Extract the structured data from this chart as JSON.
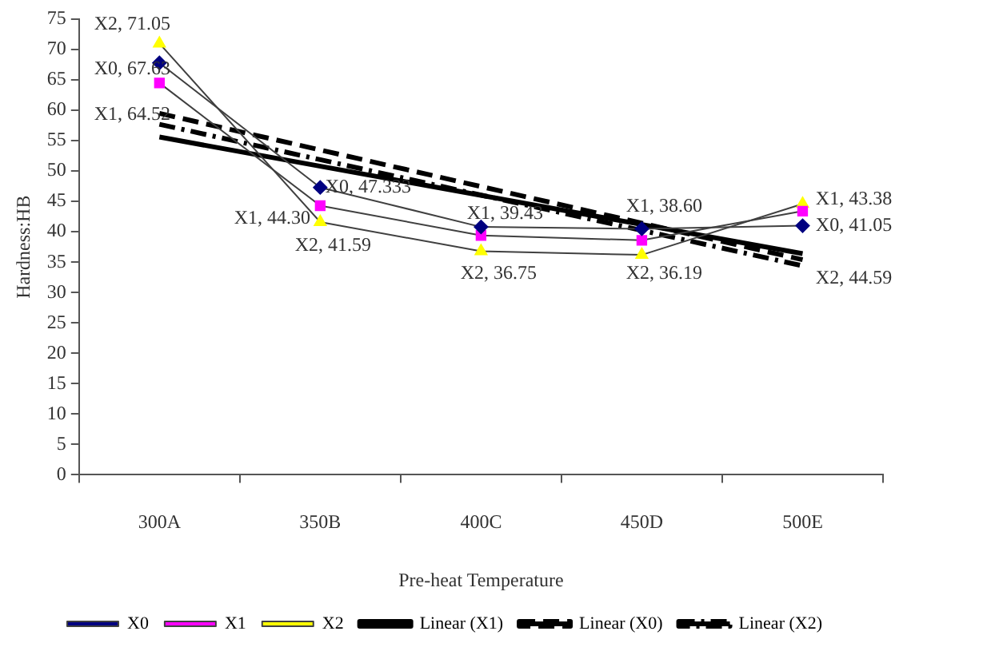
{
  "chart_data": {
    "type": "line",
    "xlabel": "Pre-heat Temperature",
    "ylabel": "Hardness:HB",
    "categories": [
      "300A",
      "350B",
      "400C",
      "450D",
      "500E"
    ],
    "series": [
      {
        "name": "X0",
        "color": "#000080",
        "marker": "diamond",
        "values": [
          67.8,
          47.3,
          40.8,
          40.5,
          41.0
        ]
      },
      {
        "name": "X1",
        "color": "#ff00ff",
        "marker": "square",
        "values": [
          64.5,
          44.3,
          39.4,
          38.6,
          43.4
        ]
      },
      {
        "name": "X2",
        "color": "#ffff00",
        "marker": "triangle",
        "values": [
          71.0,
          41.6,
          36.8,
          36.2,
          44.6
        ]
      },
      {
        "name": "Linear (X1)",
        "type": "line",
        "color": "#000000",
        "marker": "none",
        "line_style": "solid",
        "x": [
          "300A",
          "500E"
        ],
        "values": [
          55.6,
          36.4
        ]
      },
      {
        "name": "Linear (X0)",
        "type": "line",
        "color": "#000000",
        "marker": "none",
        "line_style": "dashed",
        "x": [
          "300A",
          "500E"
        ],
        "values": [
          59.5,
          35.4
        ]
      },
      {
        "name": "Linear (X2)",
        "type": "line",
        "color": "#000000",
        "marker": "none",
        "line_style": "dotted",
        "x": [
          "300A",
          "500E"
        ],
        "values": [
          57.7,
          34.4
        ]
      }
    ],
    "ylim": [
      0,
      75
    ],
    "yticks": [
      0,
      5,
      10,
      15,
      20,
      25,
      30,
      35,
      40,
      45,
      50,
      55,
      60,
      65,
      70,
      75
    ],
    "grid": false,
    "legend": "bottom",
    "annotations": [
      {
        "text": "X2, 71.05",
        "x": "300A",
        "y": 71.0
      },
      {
        "text": "X0, 67.63",
        "x": "300A",
        "y": 67.8
      },
      {
        "text": "X1, 64.52",
        "x": "300A",
        "y": 64.5
      },
      {
        "text": "X0, 47.333",
        "x": "350B",
        "y": 47.3
      },
      {
        "text": "X1, 44.30",
        "x": "350B",
        "y": 44.3
      },
      {
        "text": "X2, 41.59",
        "x": "350B",
        "y": 41.6
      },
      {
        "text": "X1, 39.43",
        "x": "400C",
        "y": 40.8
      },
      {
        "text": "X2, 36.75",
        "x": "400C",
        "y": 36.8
      },
      {
        "text": "X1, 38.60",
        "x": "450D",
        "y": 40.5
      },
      {
        "text": "X2, 36.19",
        "x": "450D",
        "y": 36.2
      },
      {
        "text": "X1, 43.38",
        "x": "500E",
        "y": 44.6
      },
      {
        "text": "X0, 41.05",
        "x": "500E",
        "y": 41.0
      },
      {
        "text": "X2, 44.59",
        "x": "500E",
        "y": 34.4
      }
    ]
  }
}
